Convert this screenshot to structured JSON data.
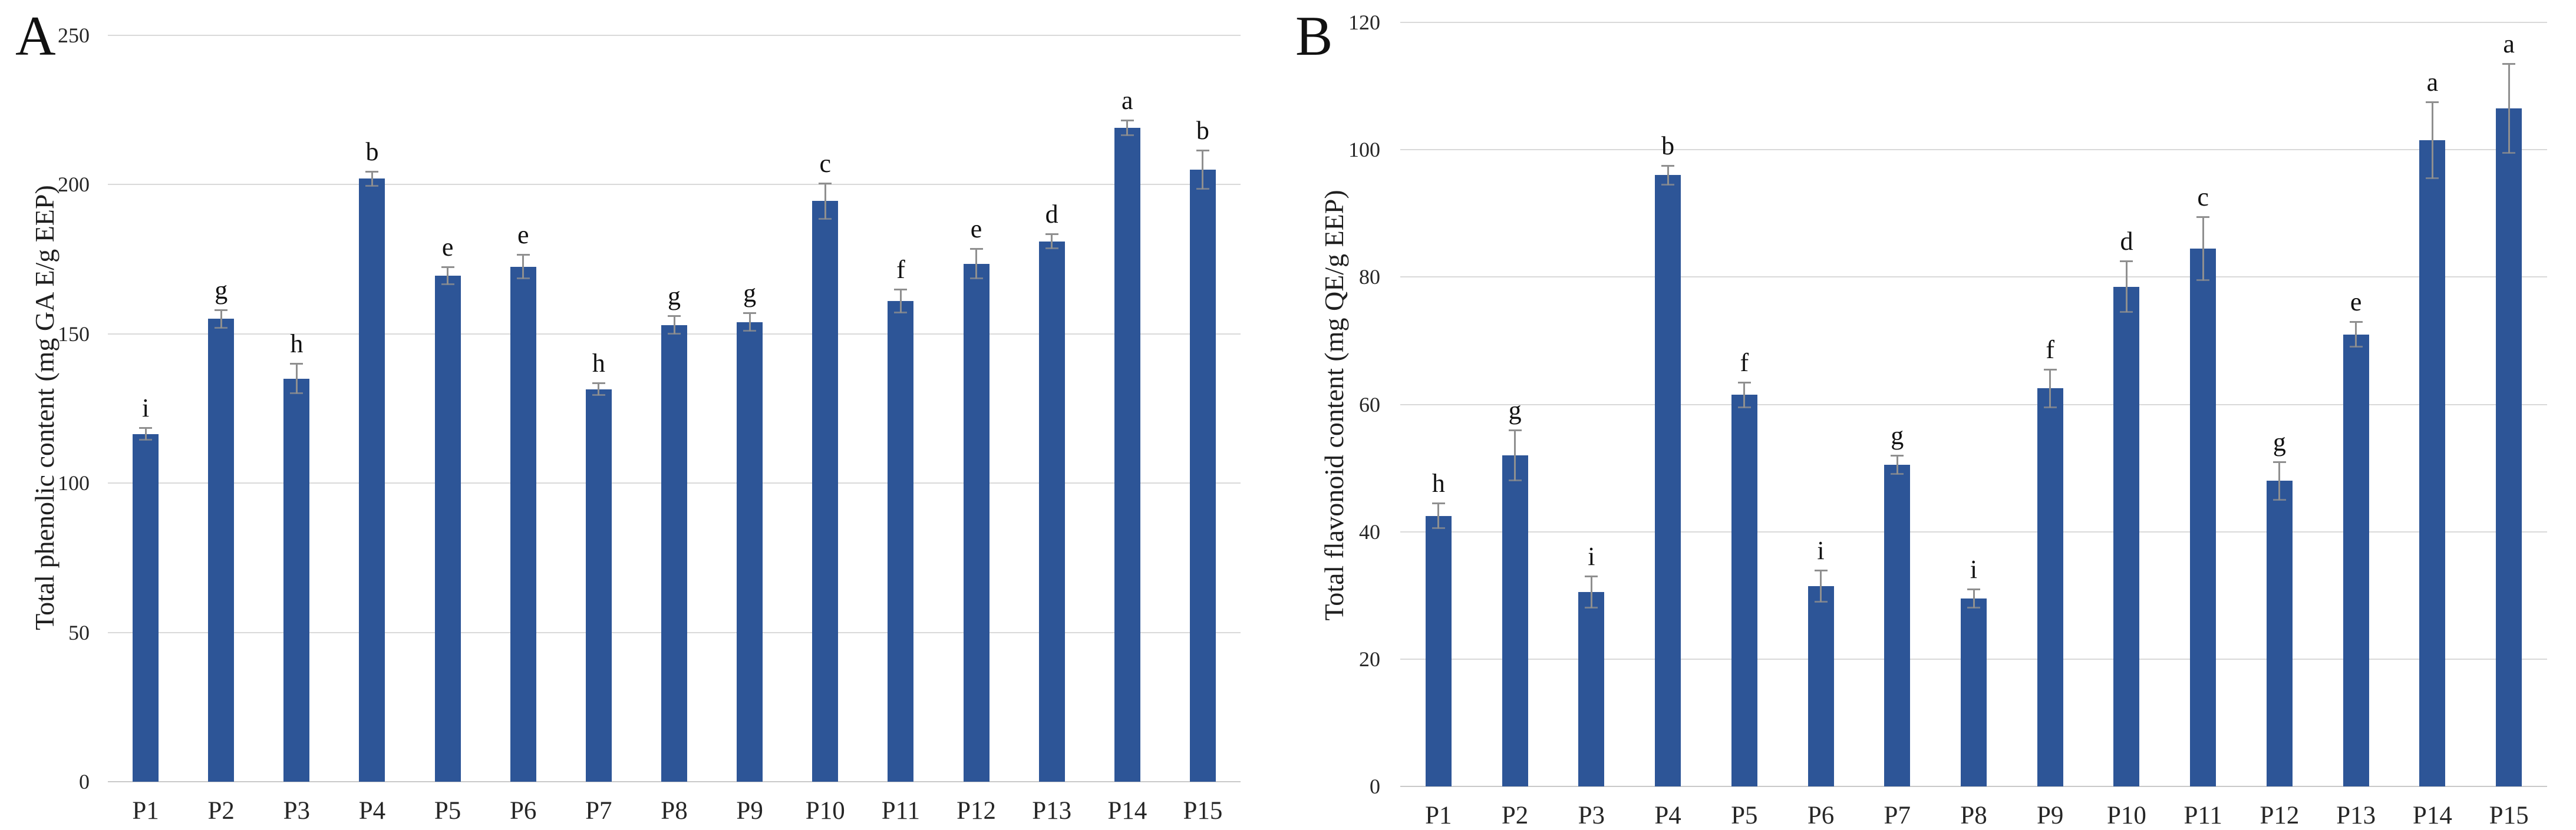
{
  "figure_title": "",
  "colors": {
    "bar": "#2d5597",
    "gridline": "#d9d9d9",
    "baseline": "#c9c9c9",
    "error_bar": "#8f8f8f",
    "text": "#262626"
  },
  "chart_data": [
    {
      "type": "bar",
      "panel_label": "A",
      "title": "",
      "xlabel": "",
      "ylabel": "Total phenolic content (mg GA E/g EEP)",
      "ylim": [
        0,
        250
      ],
      "ytick_step": 50,
      "yticks": [
        "0",
        "50",
        "100",
        "150",
        "200",
        "250"
      ],
      "grid": true,
      "legend": false,
      "categories": [
        "P1",
        "P2",
        "P3",
        "P4",
        "P5",
        "P6",
        "P7",
        "P8",
        "P9",
        "P10",
        "P11",
        "P12",
        "P13",
        "P14",
        "P15"
      ],
      "values": [
        116.5,
        155,
        135,
        202,
        169.5,
        172.5,
        131.5,
        153,
        154,
        194.5,
        161,
        173.5,
        181,
        219,
        205
      ],
      "errors": [
        2,
        3,
        5,
        2.5,
        3,
        4,
        2,
        3,
        3,
        6,
        4,
        5,
        2.5,
        2.5,
        6.5
      ],
      "sig_letters": [
        "i",
        "g",
        "h",
        "b",
        "e",
        "e",
        "h",
        "g",
        "g",
        "c",
        "f",
        "e",
        "d",
        "a",
        "b"
      ]
    },
    {
      "type": "bar",
      "panel_label": "B",
      "title": "",
      "xlabel": "",
      "ylabel": "Total flavonoid content (mg QE/g EEP)",
      "ylim": [
        0,
        120
      ],
      "ytick_step": 20,
      "yticks": [
        "0",
        "20",
        "40",
        "60",
        "80",
        "100",
        "120"
      ],
      "grid": true,
      "legend": false,
      "categories": [
        "P1",
        "P2",
        "P3",
        "P4",
        "P5",
        "P6",
        "P7",
        "P8",
        "P9",
        "P10",
        "P11",
        "P12",
        "P13",
        "P14",
        "P15"
      ],
      "values": [
        42.5,
        52,
        30.5,
        96,
        61.5,
        31.5,
        50.5,
        29.5,
        62.5,
        78.5,
        84.5,
        48,
        71,
        101.5,
        106.5
      ],
      "errors": [
        2,
        4,
        2.5,
        1.5,
        2,
        2.5,
        1.5,
        1.5,
        3,
        4,
        5,
        3,
        2,
        6,
        7
      ],
      "sig_letters": [
        "h",
        "g",
        "i",
        "b",
        "f",
        "i",
        "g",
        "i",
        "f",
        "d",
        "c",
        "g",
        "e",
        "a",
        "a"
      ]
    }
  ]
}
